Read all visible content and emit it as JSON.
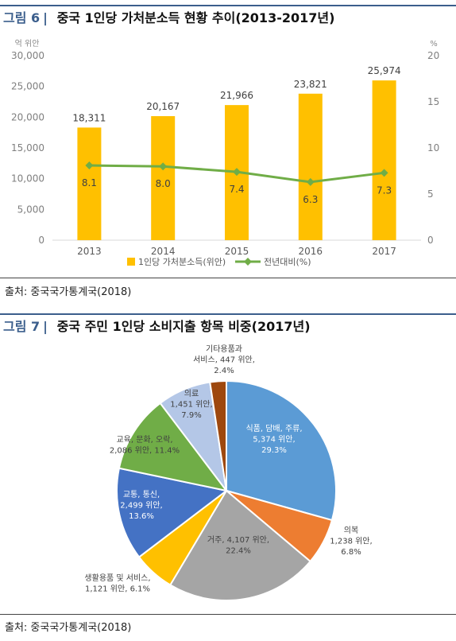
{
  "figure6": {
    "number": "그림 6",
    "title": "중국 1인당 가처분소득 현황 추이(2013-2017년)",
    "source": "출처: 중국국가통계국(2018)"
  },
  "figure7": {
    "number": "그림 7",
    "title": "중국 주민 1인당 소비지출 항목 비중(2017년)",
    "source": "출처: 중국국가통계국(2018)"
  },
  "chart_data": [
    {
      "type": "bar",
      "title": "",
      "ylabel_left": "억 위안",
      "ylabel_right": "%",
      "categories": [
        "2013",
        "2014",
        "2015",
        "2016",
        "2017"
      ],
      "ylim_left": [
        0,
        30000
      ],
      "yticks_left": [
        "0",
        "5,000",
        "10,000",
        "15,000",
        "20,000",
        "25,000",
        "30,000"
      ],
      "ylim_right": [
        0,
        20
      ],
      "yticks_right": [
        "0",
        "5",
        "10",
        "15",
        "20"
      ],
      "series": [
        {
          "name": "1인당 가처분소득(위안)",
          "type": "bar",
          "color": "#ffc000",
          "values": [
            18311,
            20167,
            21966,
            23821,
            25974
          ],
          "labels": [
            "18,311",
            "20,167",
            "21,966",
            "23,821",
            "25,974"
          ]
        },
        {
          "name": "전년대비(%)",
          "type": "line",
          "axis": "right",
          "color": "#70ad47",
          "values": [
            8.1,
            8.0,
            7.4,
            6.3,
            7.3
          ],
          "labels": [
            "8.1",
            "8.0",
            "7.4",
            "6.3",
            "7.3"
          ]
        }
      ]
    },
    {
      "type": "pie",
      "title": "",
      "slices": [
        {
          "label_lines": [
            "식품, 담배, 주류,",
            "5,374 위안,",
            "29.3%"
          ],
          "value": 29.3,
          "color": "#5b9bd5"
        },
        {
          "label_lines": [
            "의복",
            "1,238 위안,",
            "6.8%"
          ],
          "value": 6.8,
          "color": "#ed7d31"
        },
        {
          "label_lines": [
            "거주, 4,107 위안,",
            "22.4%"
          ],
          "value": 22.4,
          "color": "#a5a5a5"
        },
        {
          "label_lines": [
            "생활용품 및 서비스,",
            "1,121 위안, 6.1%"
          ],
          "value": 6.1,
          "color": "#ffc000"
        },
        {
          "label_lines": [
            "교통, 통신,",
            "2,499 위안,",
            "13.6%"
          ],
          "value": 13.6,
          "color": "#4472c4"
        },
        {
          "label_lines": [
            "교육, 문화, 오락,",
            "2,086 위안, 11.4%"
          ],
          "value": 11.4,
          "color": "#70ad47"
        },
        {
          "label_lines": [
            "의료",
            "1,451 위안,",
            "7.9%"
          ],
          "value": 7.9,
          "color": "#b4c7e7"
        },
        {
          "label_lines": [
            "기타용품과",
            "서비스, 447 위안,",
            "2.4%"
          ],
          "value": 2.4,
          "color": "#9e480e"
        }
      ]
    }
  ]
}
